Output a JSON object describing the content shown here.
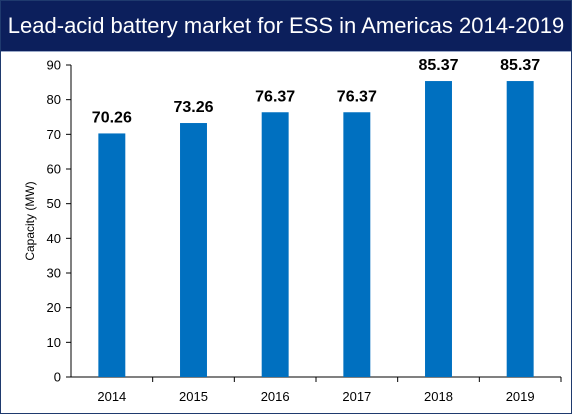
{
  "chart_data": {
    "type": "bar",
    "title": "Lead-acid battery market for ESS in Americas 2014-2019",
    "xlabel": "",
    "ylabel": "Capacity (MW)",
    "categories": [
      "2014",
      "2015",
      "2016",
      "2017",
      "2018",
      "2019"
    ],
    "values": [
      70.26,
      73.26,
      76.37,
      76.37,
      85.37,
      85.37
    ],
    "value_labels": [
      "70.26",
      "73.26",
      "76.37",
      "76.37",
      "85.37",
      "85.37"
    ],
    "ylim": [
      0,
      90
    ],
    "yticks": [
      "0",
      "10",
      "20",
      "30",
      "40",
      "50",
      "60",
      "70",
      "80",
      "90"
    ],
    "grid": false,
    "legend": "none",
    "colors": {
      "bar": "#0070c0",
      "title_background": "#0c1f5c",
      "title_text": "#ffffff",
      "axis": "#000000"
    }
  }
}
